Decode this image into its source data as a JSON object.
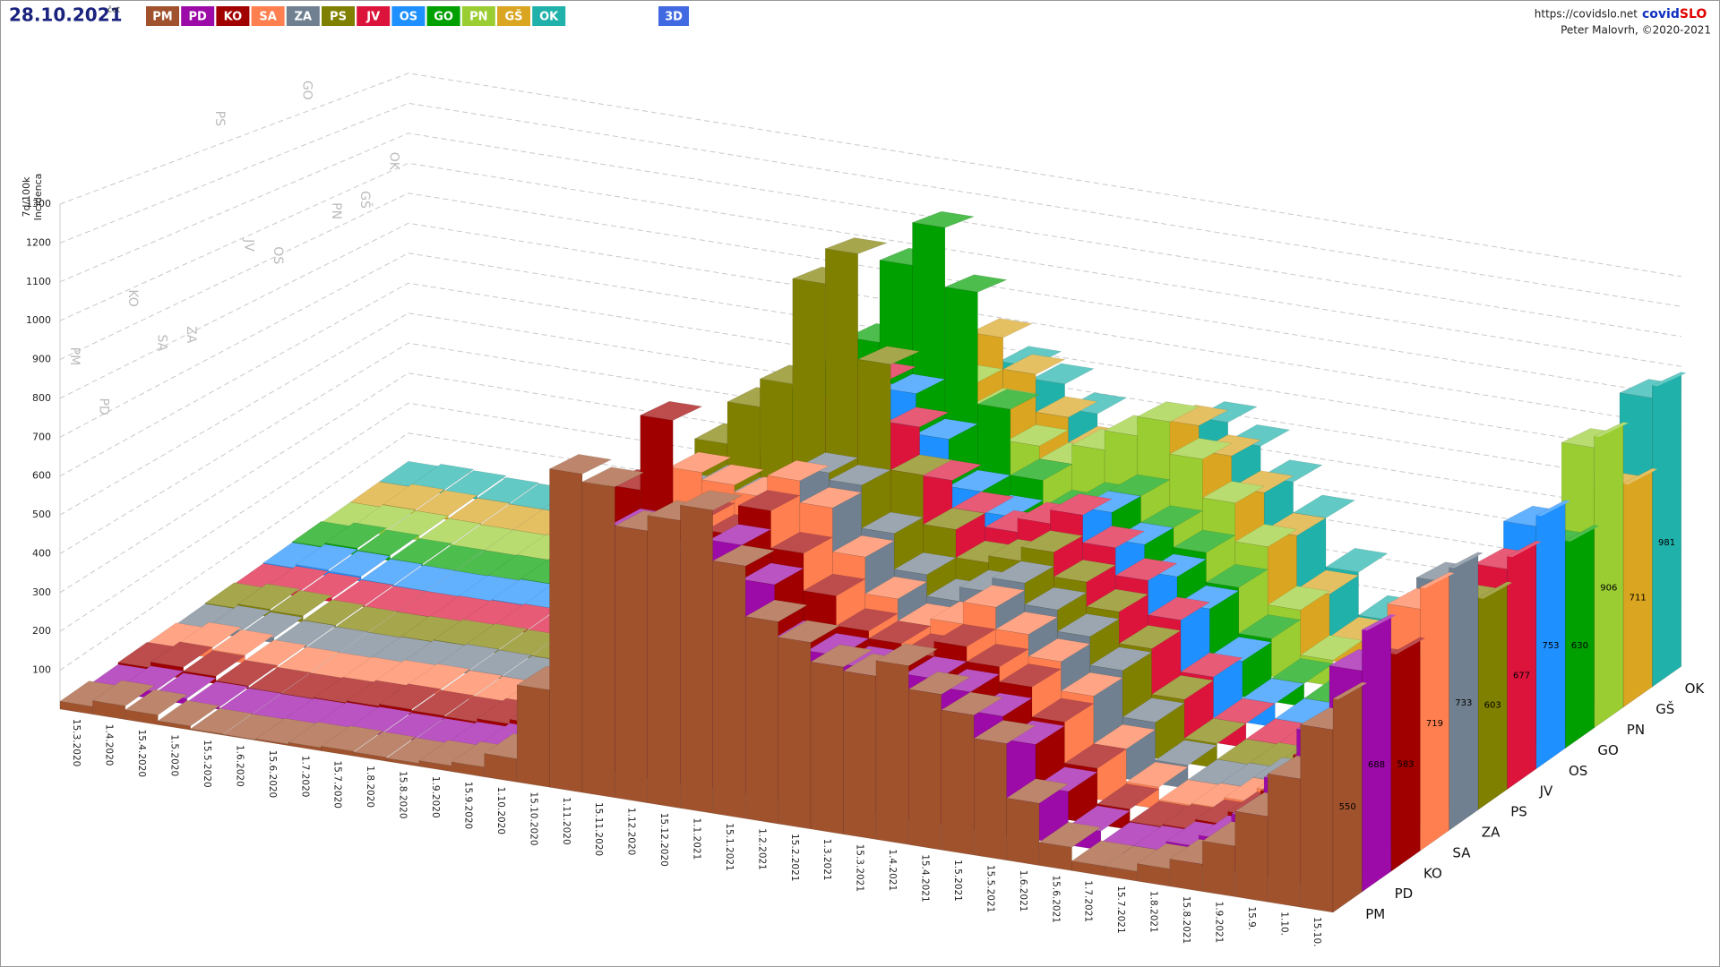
{
  "chart_data": {
    "type": "ribbon3d",
    "date": "28.10.2021",
    "weekday": "čet",
    "button": "3D",
    "url": "https://covidslo.net",
    "brand": [
      "covid",
      "SLO"
    ],
    "author": "Peter Malovrh, ©2020-2021",
    "ylabel": [
      "7d/100k",
      "Incidenca"
    ],
    "ylim": [
      0,
      1300
    ],
    "yticks": [
      100,
      200,
      300,
      400,
      500,
      600,
      700,
      800,
      900,
      1000,
      1100,
      1200,
      1300
    ],
    "grid": true,
    "categories": [
      "15.3.2020",
      "1.4.2020",
      "15.4.2020",
      "1.5.2020",
      "15.5.2020",
      "1.6.2020",
      "15.6.2020",
      "1.7.2020",
      "15.7.2020",
      "1.8.2020",
      "15.8.2020",
      "1.9.2020",
      "15.9.2020",
      "1.10.2020",
      "15.10.2020",
      "1.11.2020",
      "15.11.2020",
      "1.12.2020",
      "15.12.2020",
      "1.1.2021",
      "15.1.2021",
      "1.2.2021",
      "15.2.2021",
      "1.3.2021",
      "15.3.2021",
      "1.4.2021",
      "15.4.2021",
      "1.5.2021",
      "15.5.2021",
      "1.6.2021",
      "15.6.2021",
      "1.7.2021",
      "15.7.2021",
      "1.8.2021",
      "15.8.2021",
      "1.9.2021",
      "15.9.",
      "1.10.",
      "15.10."
    ],
    "series": [
      {
        "name": "PM",
        "color": "#a0522d",
        "latest": 550,
        "values": [
          20,
          35,
          25,
          10,
          3,
          2,
          4,
          8,
          12,
          10,
          8,
          15,
          25,
          60,
          250,
          820,
          800,
          700,
          740,
          780,
          650,
          520,
          480,
          430,
          420,
          460,
          400,
          360,
          300,
          160,
          60,
          25,
          25,
          45,
          70,
          130,
          220,
          330,
          470
        ]
      },
      {
        "name": "PD",
        "color": "#9c0aa8",
        "latest": 688,
        "values": [
          10,
          20,
          15,
          6,
          2,
          1,
          3,
          6,
          8,
          6,
          5,
          10,
          20,
          50,
          200,
          600,
          650,
          580,
          600,
          650,
          560,
          420,
          400,
          380,
          330,
          380,
          360,
          310,
          250,
          140,
          50,
          20,
          25,
          50,
          80,
          150,
          260,
          400,
          580
        ]
      },
      {
        "name": "KO",
        "color": "#a00000",
        "latest": 583,
        "values": [
          15,
          30,
          20,
          8,
          3,
          2,
          5,
          10,
          15,
          12,
          10,
          18,
          30,
          80,
          300,
          700,
          900,
          650,
          620,
          700,
          600,
          500,
          420,
          400,
          380,
          420,
          380,
          340,
          260,
          150,
          55,
          22,
          28,
          55,
          90,
          160,
          270,
          400,
          540
        ]
      },
      {
        "name": "SA",
        "color": "#ff7f50",
        "latest": 719,
        "values": [
          12,
          28,
          22,
          8,
          3,
          2,
          4,
          10,
          14,
          10,
          8,
          16,
          28,
          70,
          260,
          650,
          720,
          700,
          680,
          740,
          680,
          560,
          460,
          400,
          420,
          480,
          420,
          360,
          280,
          150,
          60,
          25,
          30,
          60,
          100,
          180,
          300,
          450,
          660
        ]
      },
      {
        "name": "ZA",
        "color": "#708090",
        "latest": 733,
        "values": [
          8,
          18,
          14,
          5,
          2,
          1,
          3,
          8,
          12,
          10,
          8,
          14,
          24,
          60,
          220,
          600,
          640,
          620,
          650,
          720,
          700,
          580,
          480,
          420,
          460,
          500,
          440,
          380,
          300,
          170,
          65,
          25,
          30,
          60,
          100,
          180,
          300,
          460,
          690
        ]
      },
      {
        "name": "PS",
        "color": "#808000",
        "latest": 603,
        "values": [
          10,
          22,
          18,
          6,
          2,
          1,
          4,
          9,
          12,
          10,
          9,
          15,
          26,
          70,
          260,
          700,
          820,
          900,
          1200,
          1300,
          1000,
          700,
          560,
          480,
          500,
          540,
          470,
          400,
          310,
          180,
          70,
          25,
          30,
          55,
          90,
          160,
          280,
          420,
          580
        ]
      },
      {
        "name": "JV",
        "color": "#dc143c",
        "latest": 677,
        "values": [
          6,
          14,
          10,
          4,
          1,
          1,
          3,
          6,
          10,
          8,
          7,
          12,
          22,
          55,
          210,
          580,
          620,
          680,
          820,
          900,
          780,
          640,
          560,
          520,
          560,
          600,
          520,
          440,
          340,
          190,
          70,
          25,
          28,
          55,
          95,
          170,
          290,
          440,
          640
        ]
      },
      {
        "name": "OS",
        "color": "#1e90ff",
        "latest": 753,
        "values": [
          8,
          18,
          14,
          5,
          2,
          1,
          3,
          7,
          10,
          9,
          8,
          13,
          22,
          55,
          210,
          560,
          600,
          700,
          780,
          820,
          700,
          560,
          500,
          470,
          520,
          560,
          480,
          400,
          320,
          180,
          70,
          25,
          30,
          60,
          100,
          180,
          300,
          470,
          720
        ]
      },
      {
        "name": "GO",
        "color": "#00a000",
        "latest": 630,
        "values": [
          10,
          22,
          16,
          6,
          2,
          1,
          3,
          8,
          12,
          10,
          9,
          14,
          24,
          65,
          250,
          700,
          800,
          900,
          1150,
          1280,
          1100,
          760,
          560,
          480,
          520,
          560,
          480,
          420,
          330,
          190,
          70,
          25,
          30,
          55,
          95,
          170,
          290,
          430,
          600
        ]
      },
      {
        "name": "PN",
        "color": "#9acd32",
        "latest": 906,
        "values": [
          6,
          14,
          12,
          4,
          1,
          1,
          3,
          7,
          10,
          8,
          7,
          12,
          20,
          50,
          200,
          520,
          560,
          600,
          680,
          760,
          700,
          600,
          560,
          620,
          680,
          740,
          640,
          520,
          400,
          220,
          80,
          30,
          35,
          70,
          120,
          220,
          380,
          600,
          870
        ]
      },
      {
        "name": "GŠ",
        "color": "#daa520",
        "latest": 711,
        "values": [
          6,
          15,
          12,
          4,
          1,
          1,
          3,
          7,
          10,
          8,
          7,
          12,
          20,
          50,
          200,
          520,
          580,
          620,
          720,
          860,
          760,
          640,
          560,
          520,
          600,
          680,
          600,
          500,
          380,
          210,
          75,
          28,
          32,
          60,
          100,
          180,
          300,
          460,
          680
        ]
      },
      {
        "name": "OK",
        "color": "#20b2aa",
        "latest": 981,
        "values": [
          6,
          14,
          10,
          4,
          1,
          1,
          3,
          6,
          9,
          7,
          6,
          11,
          18,
          45,
          180,
          480,
          520,
          560,
          640,
          720,
          680,
          600,
          520,
          500,
          560,
          640,
          580,
          480,
          380,
          220,
          80,
          30,
          35,
          70,
          120,
          230,
          400,
          650,
          940
        ]
      }
    ]
  }
}
